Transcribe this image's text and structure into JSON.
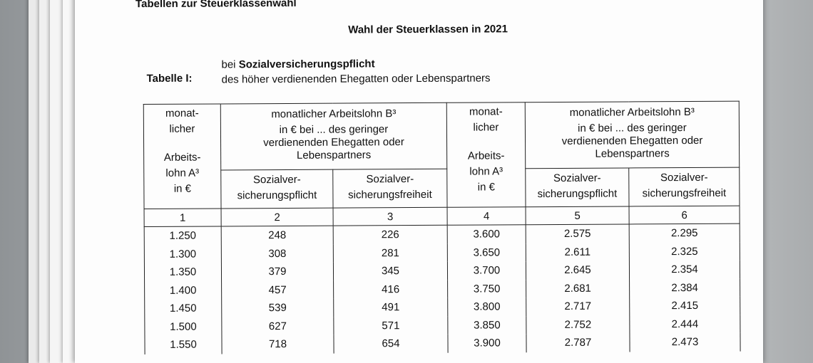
{
  "header": {
    "title": "Tabellen zur Steuerklassenwahl",
    "heading": "Wahl der Steuerklassen in 2021",
    "table_label": "Tabelle I:",
    "intro_prefix": "bei",
    "intro_bold": "Sozialversicherungspflicht",
    "intro_line2": "des höher verdienenden Ehegatten oder Lebenspartners"
  },
  "table": {
    "col_a": [
      "monat-",
      "licher",
      "Arbeits-",
      "lohn A³",
      "in €"
    ],
    "group_b": [
      "monatlicher Arbeitslohn B³",
      "in € bei ... des geringer",
      "verdienenden Ehegatten oder",
      "Lebenspartners"
    ],
    "sub": [
      [
        "Sozialver-",
        "sicherungspflicht"
      ],
      [
        "Sozialver-",
        "sicherungsfreiheit"
      ]
    ],
    "col_numbers": [
      "1",
      "2",
      "3",
      "4",
      "5",
      "6"
    ],
    "rows": [
      [
        "1.250",
        "248",
        "226",
        "3.600",
        "2.575",
        "2.295"
      ],
      [
        "1.300",
        "308",
        "281",
        "3.650",
        "2.611",
        "2.325"
      ],
      [
        "1.350",
        "379",
        "345",
        "3.700",
        "2.645",
        "2.354"
      ],
      [
        "1.400",
        "457",
        "416",
        "3.750",
        "2.681",
        "2.384"
      ],
      [
        "1.450",
        "539",
        "491",
        "3.800",
        "2.717",
        "2.415"
      ],
      [
        "1.500",
        "627",
        "571",
        "3.850",
        "2.752",
        "2.444"
      ],
      [
        "1.550",
        "718",
        "654",
        "3.900",
        "2.787",
        "2.473"
      ]
    ]
  }
}
